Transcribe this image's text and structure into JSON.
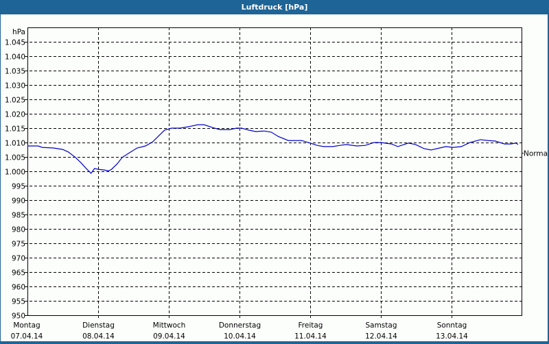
{
  "window": {
    "title": "Luftdruck [hPa]"
  },
  "colors": {
    "title_bar": "#1e6496",
    "background": "#fcfefc",
    "series": "#0000c8",
    "grid": "#000000",
    "normal_label": "#000000"
  },
  "chart_data": {
    "type": "line",
    "title": "Luftdruck [hPa]",
    "ylabel": "hPa",
    "xlabel": "",
    "ylim": [
      950,
      1045
    ],
    "y_ticks": [
      950,
      955,
      960,
      965,
      970,
      975,
      980,
      985,
      990,
      995,
      1000,
      1005,
      1010,
      1015,
      1020,
      1025,
      1030,
      1035,
      1040,
      1045
    ],
    "y_tick_labels": [
      "950",
      "955",
      "960",
      "965",
      "970",
      "975",
      "980",
      "985",
      "990",
      "995",
      "1.000",
      "1.005",
      "1.010",
      "1.015",
      "1.020",
      "1.025",
      "1.030",
      "1.035",
      "1.040",
      "1.045"
    ],
    "x_ticks": [
      {
        "day": "Montag",
        "date": "07.04.14"
      },
      {
        "day": "Dienstag",
        "date": "08.04.14"
      },
      {
        "day": "Mittwoch",
        "date": "09.04.14"
      },
      {
        "day": "Donnerstag",
        "date": "10.04.14"
      },
      {
        "day": "Freitag",
        "date": "11.04.14"
      },
      {
        "day": "Samstag",
        "date": "12.04.14"
      },
      {
        "day": "Sonntag",
        "date": "13.04.14"
      }
    ],
    "grid": true,
    "annotations": [
      {
        "label": "Normal",
        "value": 1006.5,
        "position": "right"
      }
    ],
    "series": [
      {
        "name": "Luftdruck",
        "x_days": [
          0.0,
          0.15,
          0.21,
          0.37,
          0.5,
          0.58,
          0.68,
          0.76,
          0.83,
          0.9,
          0.95,
          1.0,
          1.07,
          1.15,
          1.19,
          1.27,
          1.34,
          1.44,
          1.55,
          1.67,
          1.77,
          1.86,
          1.94,
          2.04,
          2.16,
          2.28,
          2.41,
          2.5,
          2.62,
          2.72,
          2.86,
          2.96,
          3.03,
          3.13,
          3.23,
          3.35,
          3.45,
          3.55,
          3.69,
          3.88,
          4.0,
          4.1,
          4.19,
          4.32,
          4.42,
          4.51,
          4.66,
          4.78,
          4.9,
          5.0,
          5.15,
          5.24,
          5.39,
          5.49,
          5.61,
          5.71,
          5.83,
          5.92,
          6.02,
          6.14,
          6.26,
          6.41,
          6.52,
          6.62,
          6.75,
          6.84,
          6.91,
          6.94
        ],
        "values": [
          1008.8,
          1008.8,
          1008.3,
          1008.1,
          1007.6,
          1006.7,
          1004.8,
          1002.9,
          1001.0,
          999.3,
          1001.0,
          1000.7,
          1000.5,
          1000.2,
          1000.7,
          1002.6,
          1004.8,
          1006.4,
          1008.1,
          1008.8,
          1010.2,
          1012.4,
          1014.3,
          1015.0,
          1015.0,
          1015.5,
          1016.2,
          1016.2,
          1015.2,
          1014.5,
          1014.5,
          1015.0,
          1015.0,
          1014.3,
          1013.8,
          1014.0,
          1013.6,
          1012.1,
          1010.7,
          1010.7,
          1009.8,
          1009.0,
          1008.6,
          1008.6,
          1009.0,
          1009.3,
          1008.8,
          1009.0,
          1010.0,
          1010.0,
          1009.5,
          1008.6,
          1009.8,
          1009.3,
          1007.9,
          1007.4,
          1008.1,
          1008.6,
          1008.3,
          1008.6,
          1010.0,
          1011.0,
          1010.7,
          1010.5,
          1009.5,
          1009.5,
          1009.8,
          1009.3
        ]
      }
    ]
  }
}
